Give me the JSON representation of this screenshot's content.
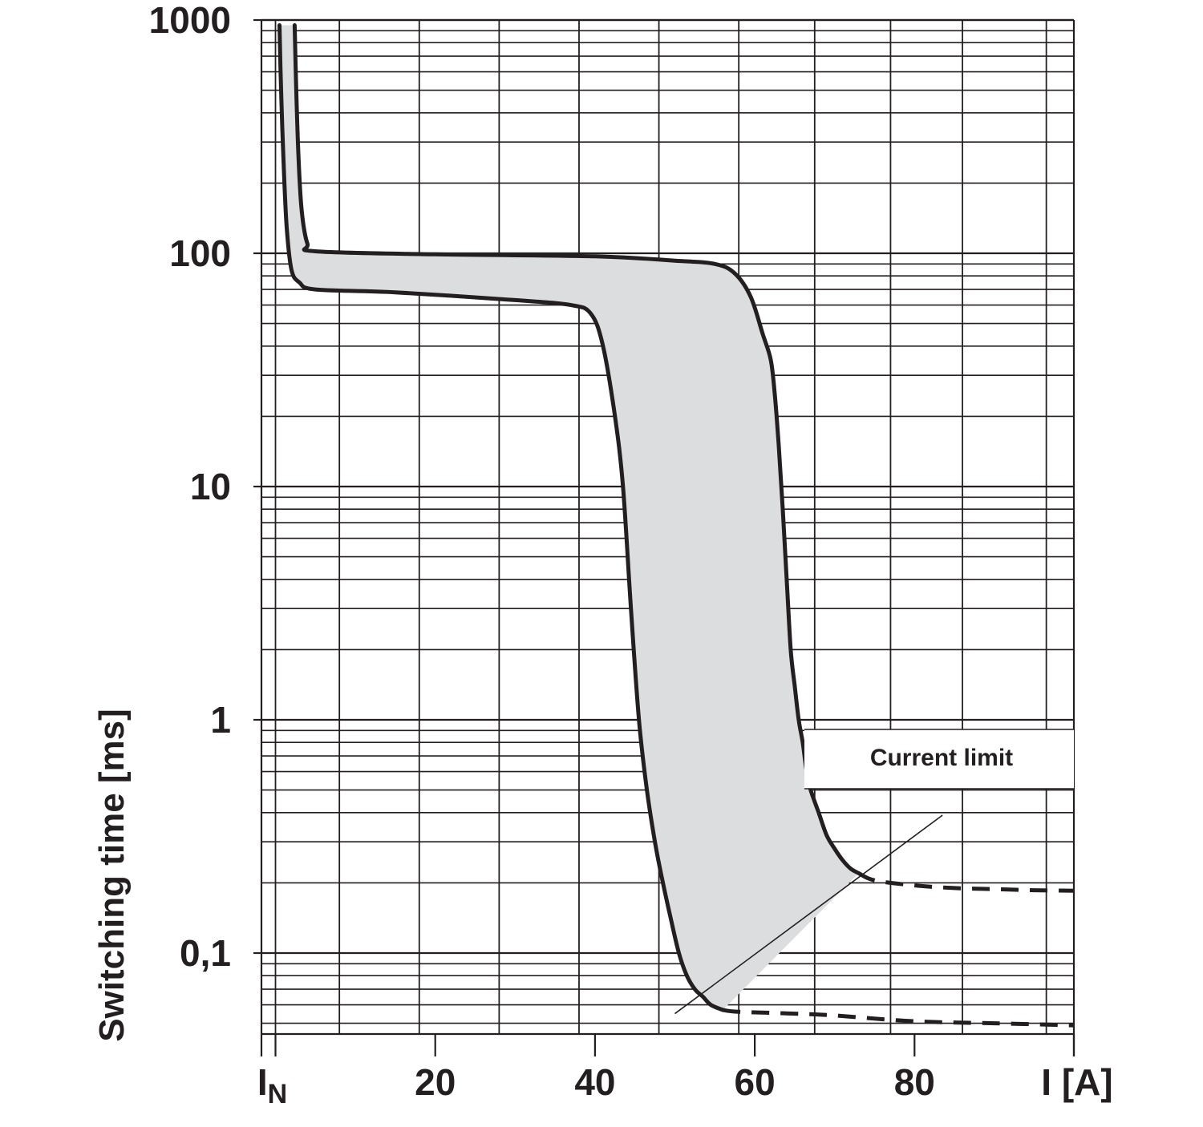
{
  "chart_data": {
    "type": "area",
    "title": "",
    "ylabel": "Switching time [ms]",
    "xlabel": "I [A]",
    "y_scale": "log",
    "ylim": [
      0.045,
      1000
    ],
    "xlim": [
      -1.5,
      100
    ],
    "grid": true,
    "x_tick_labels": [
      {
        "value": 0,
        "label": "I",
        "subscript": "N"
      },
      {
        "value": 20,
        "label": "20"
      },
      {
        "value": 40,
        "label": "40"
      },
      {
        "value": 60,
        "label": "60"
      },
      {
        "value": 80,
        "label": "80"
      },
      {
        "value": 100,
        "label": "I [A]"
      }
    ],
    "y_tick_labels": [
      {
        "value": 1000,
        "label": "1000"
      },
      {
        "value": 100,
        "label": "100"
      },
      {
        "value": 10,
        "label": "10"
      },
      {
        "value": 1,
        "label": "1"
      },
      {
        "value": 0.1,
        "label": "0,1"
      }
    ],
    "band_color": "#dcdddf",
    "line_color": "#231f20",
    "series": [
      {
        "role": "lower-boundary",
        "x": [
          0.5,
          0.7,
          1.0,
          1.4,
          2.0,
          3.0,
          5.0,
          15,
          30,
          37,
          39.5,
          41.0,
          42.5,
          43.5,
          44.5,
          45.5,
          46.5,
          47.5,
          48.5,
          49.5,
          50.5,
          51.5,
          52.5,
          53.5,
          54.5,
          56
        ],
        "y": [
          950,
          500,
          250,
          130,
          85,
          75,
          70,
          68,
          63,
          60,
          55,
          40,
          20,
          10,
          3.0,
          1.0,
          0.5,
          0.3,
          0.2,
          0.14,
          0.1,
          0.08,
          0.07,
          0.065,
          0.06,
          0.057
        ]
      },
      {
        "role": "upper-boundary",
        "x": [
          2.4,
          2.6,
          2.9,
          3.3,
          4.0,
          5.0,
          20,
          40,
          50,
          55,
          57.5,
          59.5,
          61,
          62,
          62.5,
          63,
          63.5,
          64,
          64.5,
          65,
          65.5,
          66,
          66.5,
          67,
          68,
          69,
          70,
          71,
          72,
          73
        ],
        "y": [
          950,
          500,
          250,
          150,
          110,
          102,
          99,
          97,
          93,
          90,
          82,
          65,
          45,
          35,
          25,
          15,
          8,
          4,
          2,
          1.4,
          1.0,
          0.8,
          0.6,
          0.5,
          0.4,
          0.32,
          0.28,
          0.25,
          0.23,
          0.22
        ]
      },
      {
        "role": "upper-dashed",
        "style": "dashed",
        "x": [
          73,
          75,
          80,
          85,
          90,
          95,
          100
        ],
        "y": [
          0.22,
          0.205,
          0.195,
          0.19,
          0.188,
          0.186,
          0.185
        ]
      },
      {
        "role": "lower-dashed",
        "style": "dashed",
        "x": [
          56,
          58,
          65,
          70,
          80,
          90,
          100
        ],
        "y": [
          0.057,
          0.056,
          0.055,
          0.054,
          0.051,
          0.05,
          0.049
        ]
      }
    ],
    "annotations": [
      {
        "text": "Current limit",
        "line_from": [
          50,
          0.055
        ],
        "line_to": [
          83.5,
          0.39
        ]
      }
    ]
  }
}
